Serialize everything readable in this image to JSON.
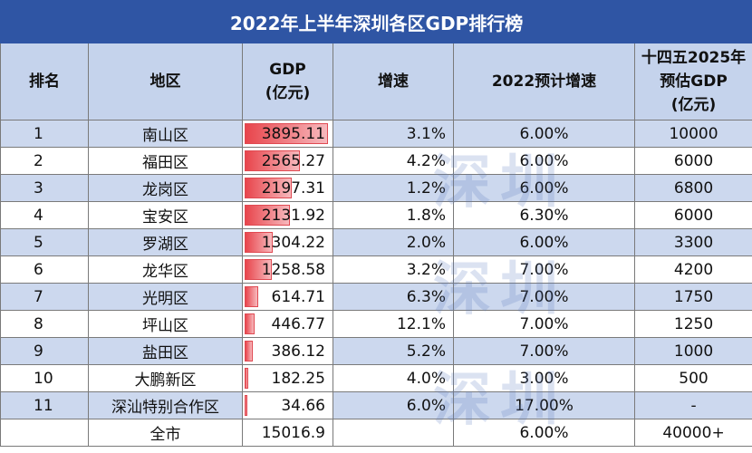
{
  "title": "2022年上半年深圳各区GDP排行榜",
  "headers": {
    "rank": "排名",
    "district": "地区",
    "gdp_line1": "GDP",
    "gdp_line2": "(亿元)",
    "growth": "增速",
    "forecast_growth": "2022预计增速",
    "plan_line1": "十四五2025年",
    "plan_line2": "预估GDP",
    "plan_line3": "(亿元)"
  },
  "rows": [
    {
      "rank": "1",
      "district": "南山区",
      "gdp": "3895.11",
      "growth": "3.1%",
      "forecast_growth": "6.00%",
      "gdp_2025": "10000"
    },
    {
      "rank": "2",
      "district": "福田区",
      "gdp": "2565.27",
      "growth": "4.2%",
      "forecast_growth": "6.00%",
      "gdp_2025": "6000"
    },
    {
      "rank": "3",
      "district": "龙岗区",
      "gdp": "2197.31",
      "growth": "1.2%",
      "forecast_growth": "6.00%",
      "gdp_2025": "6800"
    },
    {
      "rank": "4",
      "district": "宝安区",
      "gdp": "2131.92",
      "growth": "1.8%",
      "forecast_growth": "6.30%",
      "gdp_2025": "6000"
    },
    {
      "rank": "5",
      "district": "罗湖区",
      "gdp": "1304.22",
      "growth": "2.0%",
      "forecast_growth": "6.00%",
      "gdp_2025": "3300"
    },
    {
      "rank": "6",
      "district": "龙华区",
      "gdp": "1258.58",
      "growth": "3.2%",
      "forecast_growth": "7.00%",
      "gdp_2025": "4200"
    },
    {
      "rank": "7",
      "district": "光明区",
      "gdp": "614.71",
      "growth": "6.3%",
      "forecast_growth": "7.00%",
      "gdp_2025": "1750"
    },
    {
      "rank": "8",
      "district": "坪山区",
      "gdp": "446.77",
      "growth": "12.1%",
      "forecast_growth": "7.00%",
      "gdp_2025": "1250"
    },
    {
      "rank": "9",
      "district": "盐田区",
      "gdp": "386.12",
      "growth": "5.2%",
      "forecast_growth": "7.00%",
      "gdp_2025": "1000"
    },
    {
      "rank": "10",
      "district": "大鹏新区",
      "gdp": "182.25",
      "growth": "4.0%",
      "forecast_growth": "3.00%",
      "gdp_2025": "500"
    },
    {
      "rank": "11",
      "district": "深汕特别合作区",
      "gdp": "34.66",
      "growth": "6.0%",
      "forecast_growth": "17.00%",
      "gdp_2025": "-"
    }
  ],
  "total": {
    "label": "全市",
    "gdp": "15016.9",
    "growth": "",
    "forecast_growth": "6.00%",
    "gdp_2025": "40000+"
  },
  "chart_data": {
    "type": "table",
    "title": "2022年上半年深圳各区GDP排行榜",
    "columns": [
      "排名",
      "地区",
      "GDP(亿元)",
      "增速",
      "2022预计增速",
      "十四五2025年预估GDP(亿元)"
    ],
    "categories": [
      "南山区",
      "福田区",
      "龙岗区",
      "宝安区",
      "罗湖区",
      "龙华区",
      "光明区",
      "坪山区",
      "盐田区",
      "大鹏新区",
      "深汕特别合作区"
    ],
    "series": [
      {
        "name": "GDP(亿元)",
        "values": [
          3895.11,
          2565.27,
          2197.31,
          2131.92,
          1304.22,
          1258.58,
          614.71,
          446.77,
          386.12,
          182.25,
          34.66
        ]
      },
      {
        "name": "增速(%)",
        "values": [
          3.1,
          4.2,
          1.2,
          1.8,
          2.0,
          3.2,
          6.3,
          12.1,
          5.2,
          4.0,
          6.0
        ]
      },
      {
        "name": "2022预计增速(%)",
        "values": [
          6.0,
          6.0,
          6.0,
          6.3,
          6.0,
          7.0,
          7.0,
          7.0,
          7.0,
          3.0,
          17.0
        ]
      }
    ],
    "databar_max": 3895.11
  },
  "colors": {
    "header_bg": "#2f55a4",
    "band": "#ccd8ee",
    "bar": "#e8454c"
  }
}
